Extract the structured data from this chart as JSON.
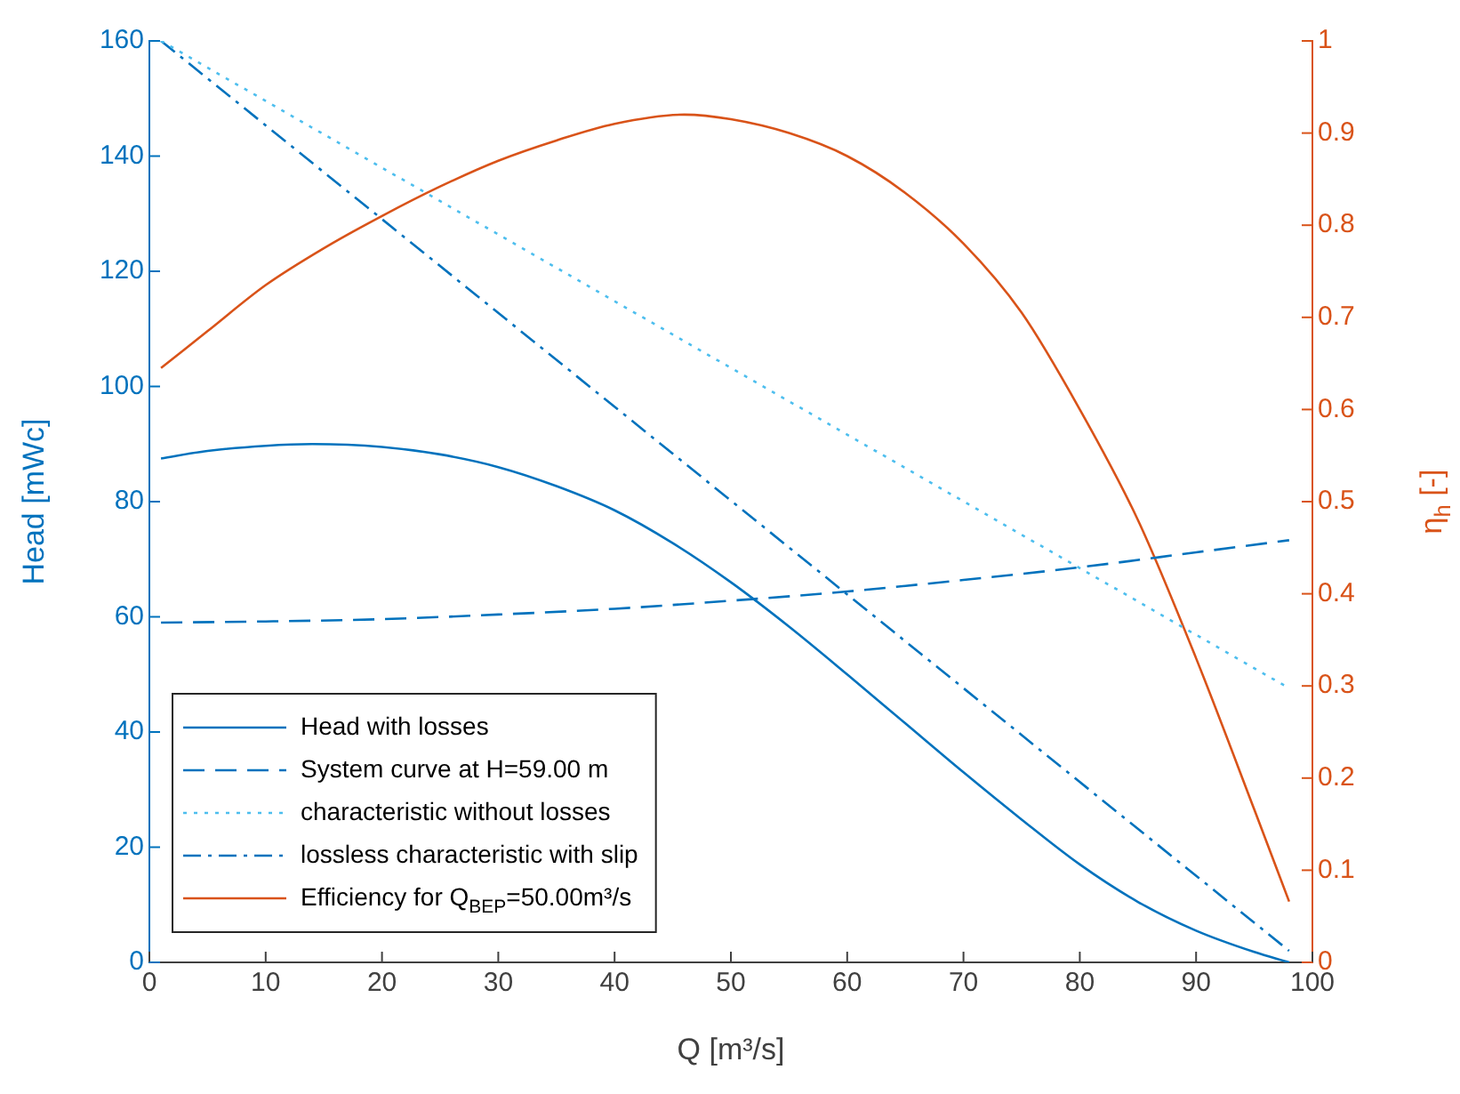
{
  "chart_data": {
    "type": "line",
    "xlabel": "Q [m³/s]",
    "ylabel": "Head [mWc]",
    "y2label": "η$_{h}$ [-]",
    "xlim": [
      0,
      100
    ],
    "xticks": [
      0,
      10,
      20,
      30,
      40,
      50,
      60,
      70,
      80,
      90,
      100
    ],
    "ylim": [
      0,
      160
    ],
    "yticks": [
      0,
      20,
      40,
      60,
      80,
      100,
      120,
      140,
      160
    ],
    "y2lim": [
      0,
      1
    ],
    "y2ticks": [
      0,
      0.1,
      0.2,
      0.3,
      0.4,
      0.5,
      0.6,
      0.7,
      0.8,
      0.9,
      1
    ],
    "grid": false,
    "legend": "bottom left",
    "marker": "none",
    "series": [
      {
        "name": "Head with losses",
        "color": "#0072bd",
        "line_style": "solid",
        "x": [
          1,
          5,
          10,
          14,
          20,
          25,
          30,
          35,
          40,
          45,
          50,
          55,
          60,
          65,
          70,
          75,
          80,
          85,
          90,
          95,
          98
        ],
        "values": [
          87.5,
          88.8,
          89.7,
          90,
          89.5,
          88.2,
          86,
          82.7,
          78.5,
          72.8,
          66,
          58.3,
          50,
          41.5,
          33,
          24.8,
          17,
          10.5,
          5.5,
          1.8,
          0
        ]
      },
      {
        "name": "System curve at H=59.00 m",
        "color": "#0072bd",
        "line_style": "dashed",
        "x": [
          1,
          10,
          20,
          30,
          40,
          50,
          60,
          70,
          80,
          90,
          98
        ],
        "values": [
          59,
          59.2,
          59.6,
          60.4,
          61.4,
          62.8,
          64.4,
          66.4,
          68.6,
          71.2,
          73.3
        ]
      },
      {
        "name": "characteristic without losses",
        "color": "#4dbeee",
        "line_style": "dotted",
        "x": [
          1,
          98
        ],
        "values": [
          160,
          47.6
        ]
      },
      {
        "name": "lossless characteristic with slip",
        "color": "#0072bd",
        "line_style": "dashdot",
        "x": [
          1,
          98
        ],
        "values": [
          160,
          2
        ]
      },
      {
        "name": "Efficiency for Q$_{BEP}$=50.00m³/s",
        "color": "#d95319",
        "line_style": "solid",
        "axis": "y2",
        "x": [
          1,
          5,
          10,
          15,
          20,
          25,
          30,
          35,
          40,
          46,
          50,
          55,
          60,
          65,
          70,
          75,
          80,
          85,
          90,
          95,
          98
        ],
        "values": [
          0.645,
          0.685,
          0.735,
          0.775,
          0.81,
          0.842,
          0.87,
          0.892,
          0.91,
          0.92,
          0.915,
          0.9,
          0.875,
          0.835,
          0.78,
          0.705,
          0.6,
          0.48,
          0.33,
          0.166,
          0.066
        ]
      }
    ]
  }
}
